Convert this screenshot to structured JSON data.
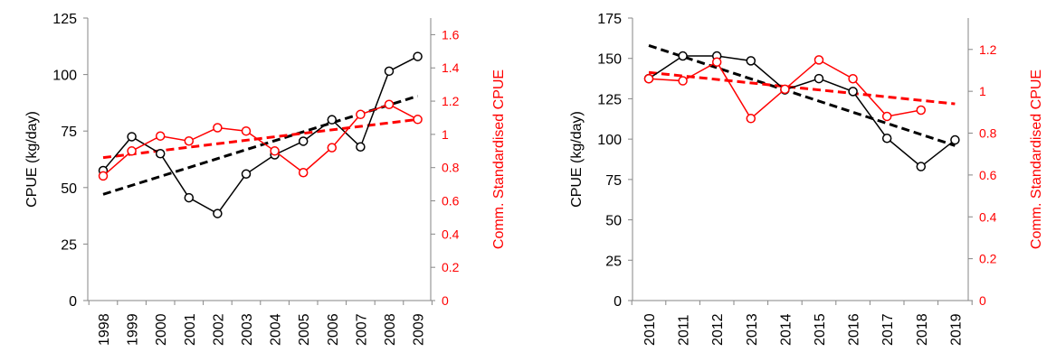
{
  "chart_data": [
    {
      "type": "line",
      "x": [
        "1998",
        "1999",
        "2000",
        "2001",
        "2002",
        "2003",
        "2004",
        "2005",
        "2006",
        "2007",
        "2008",
        "2009"
      ],
      "ylabel": "CPUE (kg/day)",
      "y2label": "Comm. Standardised CPUE",
      "ylim": [
        0,
        125
      ],
      "yticks": [
        0,
        25,
        50,
        75,
        100,
        125
      ],
      "y2lim": [
        0,
        1.7
      ],
      "y2ticks": [
        0,
        0.2,
        0.4,
        0.6,
        0.8,
        1,
        1.2,
        1.4,
        1.6
      ],
      "grid": false,
      "series": [
        {
          "axis": "left",
          "color": "#000000",
          "values": [
            57.5,
            72.5,
            65,
            45.5,
            38.5,
            56,
            64.5,
            70.5,
            80,
            68,
            101.5,
            108
          ]
        },
        {
          "axis": "right",
          "color": "#ff0000",
          "values": [
            0.75,
            0.9,
            0.99,
            0.96,
            1.04,
            1.02,
            0.9,
            0.77,
            0.92,
            1.12,
            1.18,
            1.09
          ]
        }
      ],
      "trendlines": [
        {
          "axis": "left",
          "color": "#000000",
          "start": 47,
          "end": 90.5
        },
        {
          "axis": "right",
          "color": "#ff0000",
          "start": 0.86,
          "end": 1.09
        }
      ]
    },
    {
      "type": "line",
      "x": [
        "2010",
        "2011",
        "2012",
        "2013",
        "2014",
        "2015",
        "2016",
        "2017",
        "2018",
        "2019"
      ],
      "ylabel": "CPUE (kg/day)",
      "y2label": "Comm. Standardised CPUE",
      "ylim": [
        0,
        175
      ],
      "yticks": [
        0,
        25,
        50,
        75,
        100,
        125,
        150,
        175
      ],
      "y2lim": [
        0,
        1.35
      ],
      "y2ticks": [
        0,
        0.2,
        0.4,
        0.6,
        0.8,
        1,
        1.2
      ],
      "grid": false,
      "series": [
        {
          "axis": "left",
          "color": "#000000",
          "values": [
            137.5,
            151.5,
            151.5,
            148.5,
            130.5,
            137.5,
            129.5,
            100.5,
            83,
            99.5
          ]
        },
        {
          "axis": "right",
          "color": "#ff0000",
          "values": [
            1.06,
            1.05,
            1.14,
            0.87,
            1.01,
            1.15,
            1.06,
            0.88,
            0.91,
            null
          ]
        }
      ],
      "trendlines": [
        {
          "axis": "left",
          "color": "#000000",
          "start": 158,
          "end": 96
        },
        {
          "axis": "right",
          "color": "#ff0000",
          "start": 1.09,
          "end": 0.94
        }
      ]
    }
  ]
}
